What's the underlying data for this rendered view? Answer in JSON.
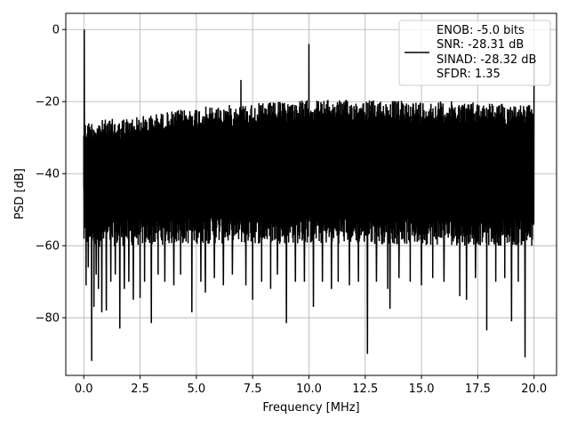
{
  "chart_data": {
    "type": "line",
    "xlabel": "Frequency [MHz]",
    "ylabel": "PSD [dB]",
    "xlim": [
      -0.8,
      21.0
    ],
    "ylim": [
      -96.0,
      4.5
    ],
    "grid": true,
    "xticks": [
      0.0,
      2.5,
      5.0,
      7.5,
      10.0,
      12.5,
      15.0,
      17.5,
      20.0
    ],
    "xtick_labels": [
      "0.0",
      "2.5",
      "5.0",
      "7.5",
      "10.0",
      "12.5",
      "15.0",
      "17.5",
      "20.0"
    ],
    "yticks": [
      0,
      -20,
      -40,
      -60,
      -80
    ],
    "ytick_labels": [
      "0",
      "−20",
      "−40",
      "−60",
      "−80"
    ],
    "legend": {
      "placement": "top-right",
      "entries": [
        "ENOB: -5.0 bits",
        "SNR: -28.31 dB",
        "SINAD: -28.32 dB",
        "SFDR: 1.35"
      ]
    },
    "series": [
      {
        "color": "#000000",
        "noise_floor_top": [
          [
            0.0,
            -25.5
          ],
          [
            2.5,
            -24.0
          ],
          [
            5.0,
            -21.5
          ],
          [
            7.5,
            -20.5
          ],
          [
            10.0,
            -19.5
          ],
          [
            12.5,
            -19.5
          ],
          [
            15.0,
            -19.8
          ],
          [
            17.5,
            -20.0
          ],
          [
            20.0,
            -21.0
          ]
        ],
        "noise_floor_bottom": [
          [
            0.0,
            -60.5
          ],
          [
            2.5,
            -60.0
          ],
          [
            5.0,
            -59.5
          ],
          [
            7.5,
            -59.5
          ],
          [
            10.0,
            -59.5
          ],
          [
            12.5,
            -59.5
          ],
          [
            15.0,
            -59.8
          ],
          [
            17.5,
            -60.0
          ],
          [
            20.0,
            -60.0
          ]
        ],
        "peaks": [
          {
            "x": 0.02,
            "y": 0.0
          },
          {
            "x": 10.0,
            "y": -4.0
          },
          {
            "x": 6.98,
            "y": -14.0
          },
          {
            "x": 20.0,
            "y": -9.0
          }
        ],
        "dips": [
          {
            "x": 0.1,
            "y": -71.0
          },
          {
            "x": 0.2,
            "y": -66.0
          },
          {
            "x": 0.35,
            "y": -92.0
          },
          {
            "x": 0.45,
            "y": -77.0
          },
          {
            "x": 0.55,
            "y": -68.0
          },
          {
            "x": 0.65,
            "y": -72.0
          },
          {
            "x": 0.8,
            "y": -78.5
          },
          {
            "x": 1.0,
            "y": -78.0
          },
          {
            "x": 1.2,
            "y": -70.0
          },
          {
            "x": 1.4,
            "y": -68.0
          },
          {
            "x": 1.6,
            "y": -83.0
          },
          {
            "x": 1.8,
            "y": -72.0
          },
          {
            "x": 2.0,
            "y": -70.0
          },
          {
            "x": 2.2,
            "y": -75.0
          },
          {
            "x": 2.5,
            "y": -74.5
          },
          {
            "x": 2.7,
            "y": -70.0
          },
          {
            "x": 3.0,
            "y": -81.5
          },
          {
            "x": 3.3,
            "y": -68.0
          },
          {
            "x": 3.6,
            "y": -70.0
          },
          {
            "x": 4.0,
            "y": -71.0
          },
          {
            "x": 4.3,
            "y": -68.0
          },
          {
            "x": 4.8,
            "y": -78.5
          },
          {
            "x": 5.2,
            "y": -70.0
          },
          {
            "x": 5.4,
            "y": -73.0
          },
          {
            "x": 5.8,
            "y": -69.0
          },
          {
            "x": 6.2,
            "y": -71.0
          },
          {
            "x": 6.6,
            "y": -68.0
          },
          {
            "x": 7.2,
            "y": -71.0
          },
          {
            "x": 7.5,
            "y": -75.0
          },
          {
            "x": 7.9,
            "y": -70.0
          },
          {
            "x": 8.3,
            "y": -72.0
          },
          {
            "x": 8.6,
            "y": -68.0
          },
          {
            "x": 9.0,
            "y": -81.5
          },
          {
            "x": 9.4,
            "y": -70.0
          },
          {
            "x": 9.8,
            "y": -70.0
          },
          {
            "x": 10.2,
            "y": -77.0
          },
          {
            "x": 10.6,
            "y": -70.0
          },
          {
            "x": 11.0,
            "y": -72.0
          },
          {
            "x": 11.3,
            "y": -70.0
          },
          {
            "x": 11.8,
            "y": -71.0
          },
          {
            "x": 12.2,
            "y": -70.0
          },
          {
            "x": 12.6,
            "y": -90.0
          },
          {
            "x": 13.0,
            "y": -70.0
          },
          {
            "x": 13.5,
            "y": -72.0
          },
          {
            "x": 13.6,
            "y": -77.5
          },
          {
            "x": 14.0,
            "y": -69.0
          },
          {
            "x": 14.5,
            "y": -70.0
          },
          {
            "x": 15.0,
            "y": -71.0
          },
          {
            "x": 15.5,
            "y": -69.0
          },
          {
            "x": 16.0,
            "y": -70.0
          },
          {
            "x": 16.7,
            "y": -74.0
          },
          {
            "x": 17.0,
            "y": -75.0
          },
          {
            "x": 17.4,
            "y": -69.0
          },
          {
            "x": 17.9,
            "y": -83.5
          },
          {
            "x": 18.3,
            "y": -70.0
          },
          {
            "x": 18.7,
            "y": -69.0
          },
          {
            "x": 19.0,
            "y": -81.0
          },
          {
            "x": 19.3,
            "y": -70.0
          },
          {
            "x": 19.6,
            "y": -91.0
          },
          {
            "x": 19.9,
            "y": -60.0
          }
        ]
      }
    ]
  }
}
